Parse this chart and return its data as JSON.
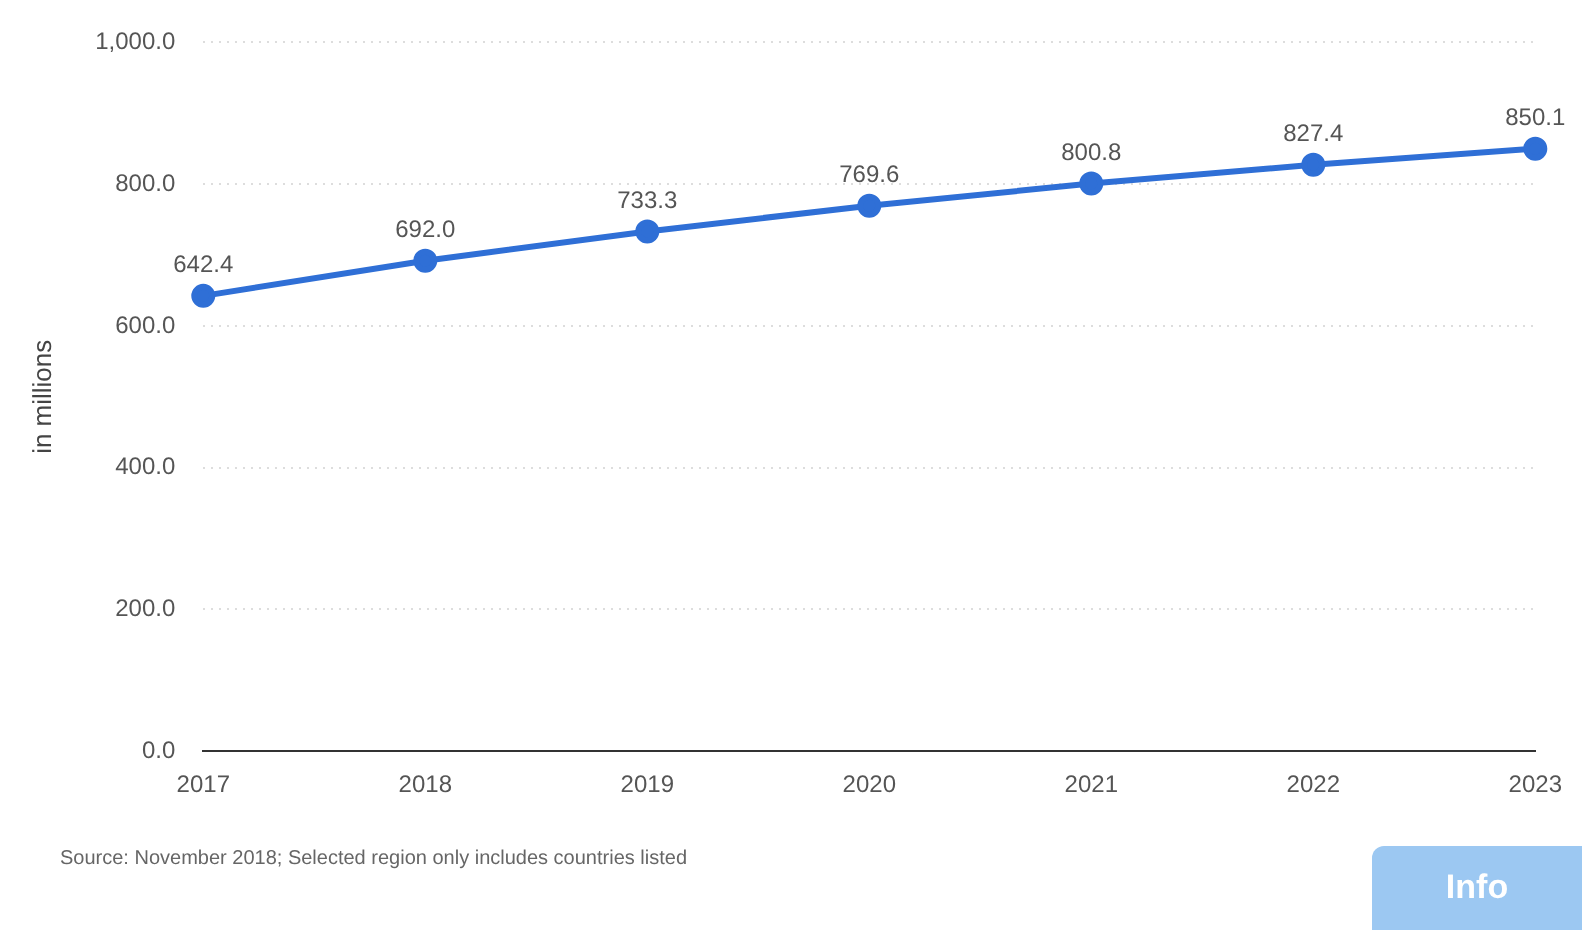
{
  "chart_data": {
    "type": "line",
    "ylabel": "in millions",
    "categories": [
      "2017",
      "2018",
      "2019",
      "2020",
      "2021",
      "2022",
      "2023"
    ],
    "series": [
      {
        "color": "#2f6fd6",
        "values": [
          642.4,
          692.0,
          733.3,
          769.6,
          800.8,
          827.4,
          850.1
        ]
      }
    ],
    "value_labels": [
      "642.4",
      "692.0",
      "733.3",
      "769.6",
      "800.8",
      "827.4",
      "850.1"
    ],
    "ylim": [
      0,
      1000
    ],
    "yticks": [
      {
        "value": 0,
        "label": "0.0"
      },
      {
        "value": 200,
        "label": "200.0"
      },
      {
        "value": 400,
        "label": "400.0"
      },
      {
        "value": 600,
        "label": "600.0"
      },
      {
        "value": 800,
        "label": "800.0"
      },
      {
        "value": 1000,
        "label": "1,000.0"
      }
    ],
    "grid": "y",
    "legend": false,
    "marker": "circle",
    "line_style": "solid",
    "annotations": [
      "Source: November 2018; Selected region only includes countries listed",
      "Info"
    ]
  }
}
